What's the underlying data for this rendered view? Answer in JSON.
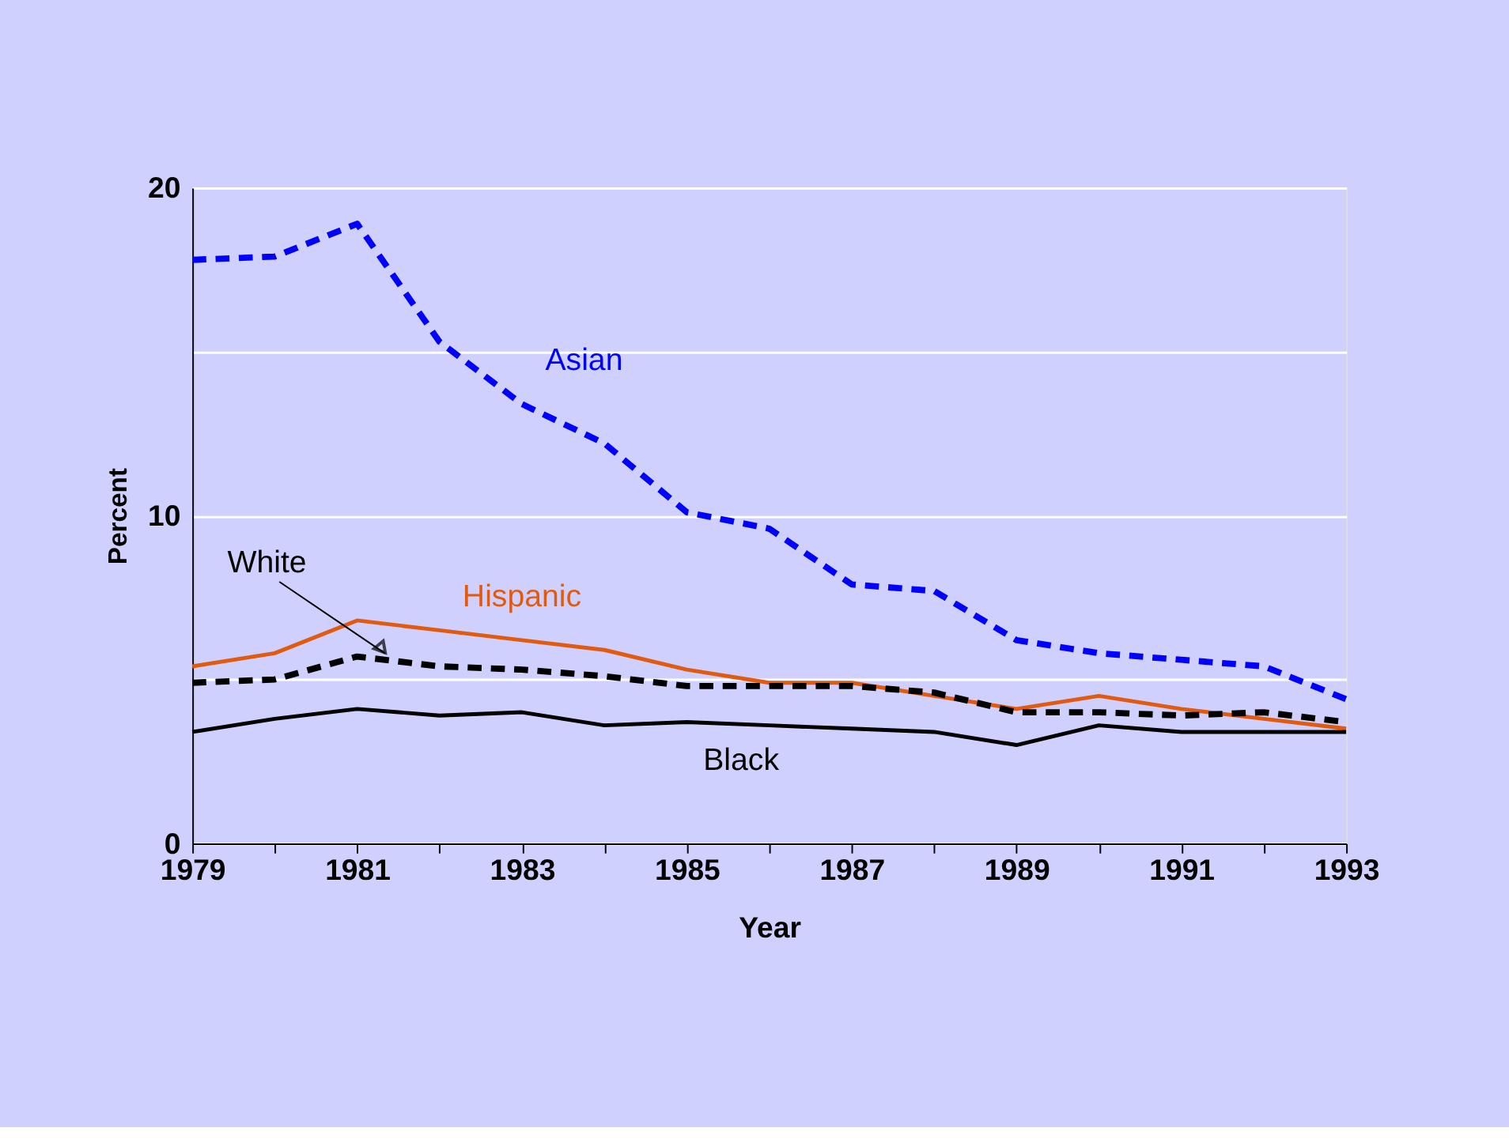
{
  "chart_data": {
    "type": "line",
    "xlabel": "Year",
    "ylabel": "Percent",
    "x": [
      1979,
      1980,
      1981,
      1982,
      1983,
      1984,
      1985,
      1986,
      1987,
      1988,
      1989,
      1990,
      1991,
      1992,
      1993
    ],
    "xlim": [
      1979,
      1993
    ],
    "xticks": [
      1979,
      {
        "value": 1980,
        "label": null
      },
      1981,
      {
        "value": 1982,
        "label": null
      },
      1983,
      {
        "value": 1984,
        "label": null
      },
      1985,
      {
        "value": 1986,
        "label": null
      },
      1987,
      {
        "value": 1988,
        "label": null
      },
      1989,
      {
        "value": 1990,
        "label": null
      },
      1991,
      {
        "value": 1992,
        "label": null
      },
      1993
    ],
    "ylim": [
      0,
      20
    ],
    "yticks": [
      0,
      {
        "value": 5,
        "label": null
      },
      10,
      {
        "value": 15,
        "label": null
      },
      20
    ],
    "grid": "y",
    "legend": false,
    "marker": "none",
    "series": [
      {
        "name": "Asian",
        "color": "#0000ff",
        "line_style": "dashed",
        "values": [
          17.8,
          17.9,
          18.9,
          15.3,
          13.4,
          12.2,
          10.1,
          9.6,
          7.9,
          7.7,
          6.2,
          5.8,
          5.6,
          5.4,
          4.4
        ]
      },
      {
        "name": "Hispanic",
        "color": "#e05a10",
        "line_style": "solid",
        "values": [
          5.4,
          5.8,
          6.8,
          6.5,
          6.2,
          5.9,
          5.3,
          4.9,
          4.9,
          4.5,
          4.1,
          4.5,
          4.1,
          3.8,
          3.5
        ]
      },
      {
        "name": "White",
        "color": "#000000",
        "line_style": "dashed",
        "values": [
          4.9,
          5.0,
          5.7,
          5.4,
          5.3,
          5.1,
          4.8,
          4.8,
          4.8,
          4.6,
          4.0,
          4.0,
          3.9,
          4.0,
          3.7
        ]
      },
      {
        "name": "Black",
        "color": "#000000",
        "line_style": "solid",
        "values": [
          3.4,
          3.8,
          4.1,
          3.9,
          4.0,
          3.6,
          3.7,
          3.6,
          3.5,
          3.4,
          3.0,
          3.6,
          3.4,
          3.4,
          3.4
        ]
      }
    ]
  }
}
